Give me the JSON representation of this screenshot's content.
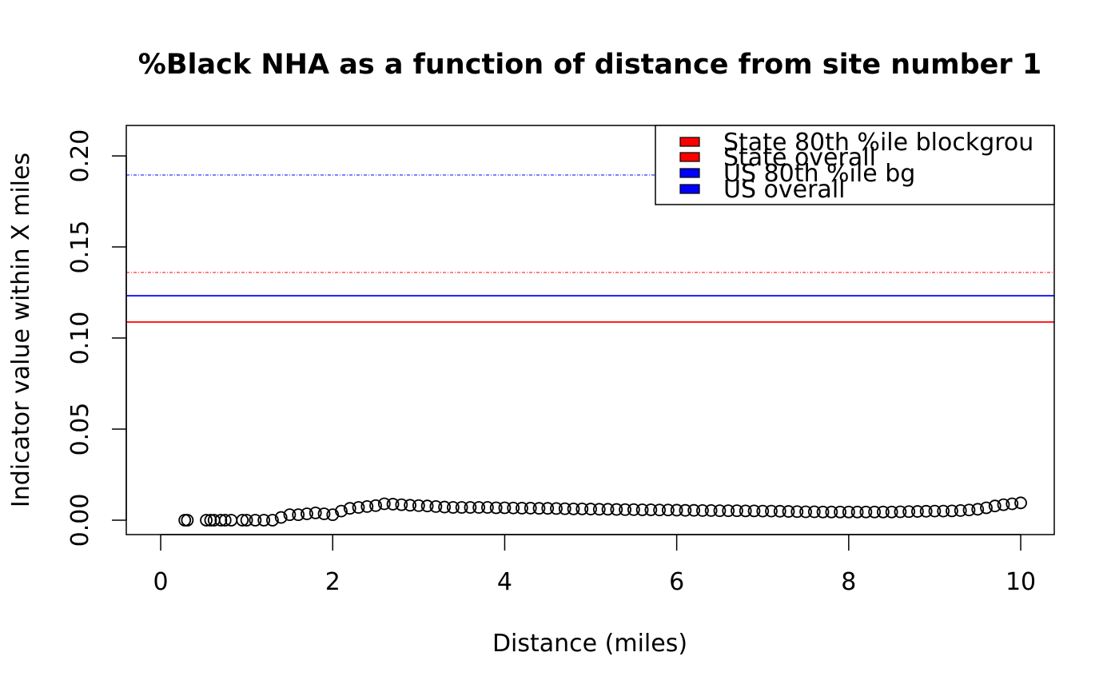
{
  "chart_data": {
    "type": "scatter",
    "title": "%Black NHA as a function of distance from site number 1",
    "x_label": "Distance (miles)",
    "y_label": "Indicator value within X miles",
    "xlim": [
      -0.4,
      10.39
    ],
    "ylim": [
      -0.0079,
      0.2167
    ],
    "xticks": [
      0,
      2,
      4,
      6,
      8,
      10
    ],
    "yticks": [
      {
        "value": 0,
        "label": "0.00"
      },
      {
        "value": 0.05,
        "label": "0.05"
      },
      {
        "value": 0.1,
        "label": "0.10"
      },
      {
        "value": 0.15,
        "label": "0.15"
      },
      {
        "value": 0.2,
        "label": "0.20"
      }
    ],
    "marker_color": "#000000",
    "x": [
      0.28,
      0.31,
      0.53,
      0.58,
      0.62,
      0.7,
      0.75,
      0.82,
      0.95,
      1.0,
      1.1,
      1.2,
      1.3,
      1.4,
      1.5,
      1.6,
      1.7,
      1.8,
      1.9,
      2.0,
      2.1,
      2.2,
      2.3,
      2.4,
      2.5,
      2.6,
      2.7,
      2.8,
      2.9,
      3.0,
      3.1,
      3.2,
      3.3,
      3.4,
      3.5,
      3.6,
      3.7,
      3.8,
      3.9,
      4.0,
      4.1,
      4.2,
      4.3,
      4.4,
      4.5,
      4.6,
      4.7,
      4.8,
      4.9,
      5.0,
      5.1,
      5.2,
      5.3,
      5.4,
      5.5,
      5.6,
      5.7,
      5.8,
      5.9,
      6.0,
      6.1,
      6.2,
      6.3,
      6.4,
      6.5,
      6.6,
      6.7,
      6.8,
      6.9,
      7.0,
      7.1,
      7.2,
      7.3,
      7.4,
      7.5,
      7.6,
      7.7,
      7.8,
      7.9,
      8.0,
      8.1,
      8.2,
      8.3,
      8.4,
      8.5,
      8.6,
      8.7,
      8.8,
      8.9,
      9.0,
      9.1,
      9.2,
      9.3,
      9.4,
      9.5,
      9.6,
      9.7,
      9.8,
      9.9,
      10.0
    ],
    "values": [
      0,
      0,
      0,
      0,
      0,
      0,
      0,
      0,
      0,
      0,
      0,
      0,
      0,
      0.0015,
      0.003,
      0.003,
      0.0035,
      0.004,
      0.0035,
      0.003,
      0.005,
      0.0065,
      0.007,
      0.0075,
      0.008,
      0.009,
      0.0088,
      0.0085,
      0.0082,
      0.008,
      0.0078,
      0.0075,
      0.0072,
      0.007,
      0.007,
      0.007,
      0.007,
      0.007,
      0.0068,
      0.0068,
      0.0067,
      0.0066,
      0.0066,
      0.0065,
      0.0065,
      0.0064,
      0.0063,
      0.0062,
      0.0062,
      0.0061,
      0.006,
      0.006,
      0.0059,
      0.0058,
      0.0058,
      0.0057,
      0.0057,
      0.0056,
      0.0056,
      0.0055,
      0.0054,
      0.0054,
      0.0053,
      0.0053,
      0.0052,
      0.0052,
      0.0052,
      0.0051,
      0.0051,
      0.005,
      0.005,
      0.0049,
      0.0048,
      0.0047,
      0.0046,
      0.0046,
      0.0045,
      0.0045,
      0.0045,
      0.0045,
      0.0045,
      0.0045,
      0.0045,
      0.0045,
      0.0045,
      0.0046,
      0.0047,
      0.0048,
      0.0049,
      0.005,
      0.005,
      0.0051,
      0.0053,
      0.0056,
      0.006,
      0.0068,
      0.0078,
      0.0085,
      0.009,
      0.0095
    ],
    "reference_lines": [
      {
        "name": "State 80th %ile blockgrou",
        "color": "#ff0000",
        "value": 0.136,
        "dashed": true
      },
      {
        "name": "State overall",
        "color": "#ff0000",
        "value": 0.1088,
        "dashed": false
      },
      {
        "name": "US 80th %ile bg",
        "color": "#0000ff",
        "value": 0.1895,
        "dashed": true
      },
      {
        "name": "US overall",
        "color": "#0000ff",
        "value": 0.1232,
        "dashed": false
      }
    ],
    "legend_position": "top-right"
  }
}
